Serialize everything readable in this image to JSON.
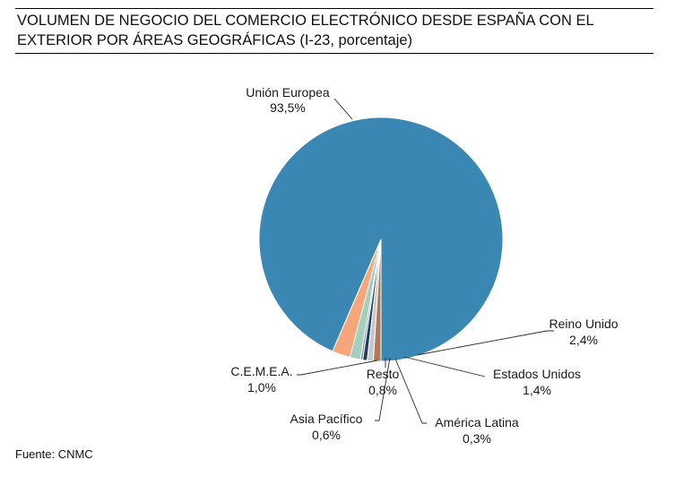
{
  "title": "VOLUMEN DE NEGOCIO DEL COMERCIO ELECTRÓNICO DESDE ESPAÑA CON EL EXTERIOR POR ÁREAS GEOGRÁFICAS (I-23, porcentaje)",
  "source": "Fuente: CNMC",
  "chart_data": {
    "type": "pie",
    "title": "VOLUMEN DE NEGOCIO DEL COMERCIO ELECTRÓNICO DESDE ESPAÑA CON EL EXTERIOR POR ÁREAS GEOGRÁFICAS (I-23, porcentaje)",
    "unit": "%",
    "legend": "none",
    "slices": [
      {
        "name": "Unión Europea",
        "value": 93.5,
        "label": "93,5%",
        "color": "#3a87b3"
      },
      {
        "name": "Reino Unido",
        "value": 2.4,
        "label": "2,4%",
        "color": "#f7a57b"
      },
      {
        "name": "Estados Unidos",
        "value": 1.4,
        "label": "1,4%",
        "color": "#a4cfbd"
      },
      {
        "name": "América Latina",
        "value": 0.3,
        "label": "0,3%",
        "color": "#7d8f9c"
      },
      {
        "name": "Asia Pacífico",
        "value": 0.6,
        "label": "0,6%",
        "color": "#1f3f5c"
      },
      {
        "name": "Resto",
        "value": 0.8,
        "label": "0,8%",
        "color": "#c5c9cf"
      },
      {
        "name": "C.E.M.E.A.",
        "value": 1.0,
        "label": "1,0%",
        "color": "#b07a55"
      }
    ]
  }
}
